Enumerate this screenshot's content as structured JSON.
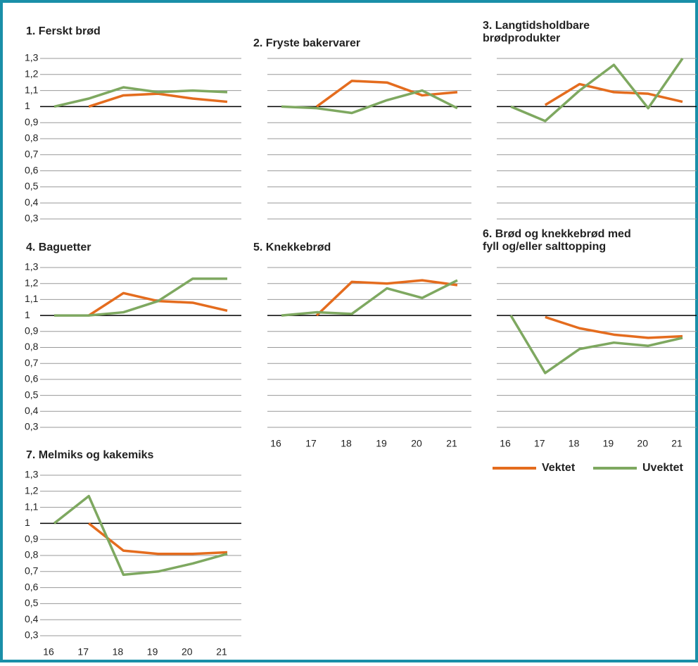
{
  "chart_data": [
    {
      "type": "line",
      "title": "1. Ferskt brød",
      "categories": [
        null,
        null,
        null,
        null,
        null,
        null
      ],
      "series": [
        {
          "color": "#e46c1e",
          "values": [
            null,
            1.0,
            1.07,
            1.08,
            1.05,
            1.03
          ]
        },
        {
          "color": "#7ea860",
          "values": [
            1.0,
            1.05,
            1.12,
            1.09,
            1.1,
            1.09
          ]
        }
      ],
      "ylim": [
        0.3,
        1.3
      ],
      "yticks": [
        {
          "value": 1.3,
          "label": "1,3"
        },
        {
          "value": 1.2,
          "label": "1,2"
        },
        {
          "value": 1.1,
          "label": "1,1"
        },
        1,
        {
          "value": 0.9,
          "label": "0,9"
        },
        {
          "value": 0.8,
          "label": "0,8"
        },
        {
          "value": 0.7,
          "label": "0,7"
        },
        {
          "value": 0.6,
          "label": "0,6"
        },
        {
          "value": 0.5,
          "label": "0,5"
        },
        {
          "value": 0.4,
          "label": "0,4"
        },
        {
          "value": 0.3,
          "label": "0,3"
        }
      ],
      "grid": true,
      "baseline": 1
    },
    {
      "type": "line",
      "title": "2. Fryste bakervarer",
      "categories": [
        null,
        null,
        null,
        null,
        null,
        null
      ],
      "series": [
        {
          "color": "#e46c1e",
          "values": [
            null,
            1.0,
            1.16,
            1.15,
            1.07,
            1.09
          ]
        },
        {
          "color": "#7ea860",
          "values": [
            1.0,
            0.99,
            0.96,
            1.04,
            1.1,
            0.99
          ]
        }
      ],
      "ylim": [
        0.3,
        1.3
      ],
      "yticks": [
        1.3,
        1.2,
        1.1,
        1,
        0.9,
        0.8,
        0.7,
        0.6,
        0.5,
        0.4,
        0.3
      ],
      "grid": true,
      "baseline": 1
    },
    {
      "type": "line",
      "title": [
        "3. Langtidsholdbare",
        "brødprodukter"
      ],
      "categories": [
        null,
        null,
        null,
        null,
        null,
        null
      ],
      "series": [
        {
          "color": "#e46c1e",
          "values": [
            null,
            1.01,
            1.14,
            1.09,
            1.08,
            1.03
          ]
        },
        {
          "color": "#7ea860",
          "values": [
            1.0,
            0.91,
            1.1,
            1.26,
            0.99,
            1.3
          ]
        }
      ],
      "ylim": [
        0.3,
        1.3
      ],
      "yticks": [
        1.3,
        1.2,
        1.1,
        1,
        0.9,
        0.8,
        0.7,
        0.6,
        0.5,
        0.4,
        0.3
      ],
      "grid": true,
      "baseline": 1
    },
    {
      "type": "line",
      "title": "4. Baguetter",
      "categories": [
        null,
        null,
        null,
        null,
        null,
        null
      ],
      "series": [
        {
          "color": "#e46c1e",
          "values": [
            null,
            1.0,
            1.14,
            1.09,
            1.08,
            1.03
          ]
        },
        {
          "color": "#7ea860",
          "values": [
            1.0,
            1.0,
            1.02,
            1.09,
            1.23,
            1.23
          ]
        }
      ],
      "ylim": [
        0.3,
        1.3
      ],
      "yticks": [
        {
          "value": 1.3,
          "label": "1,3"
        },
        {
          "value": 1.2,
          "label": "1,2"
        },
        {
          "value": 1.1,
          "label": "1,1"
        },
        1,
        {
          "value": 0.9,
          "label": "0,9"
        },
        {
          "value": 0.8,
          "label": "0,8"
        },
        {
          "value": 0.7,
          "label": "0,7"
        },
        {
          "value": 0.6,
          "label": "0,6"
        },
        {
          "value": 0.5,
          "label": "0,5"
        },
        {
          "value": 0.4,
          "label": "0,4"
        },
        {
          "value": 0.3,
          "label": "0,3"
        }
      ],
      "grid": true,
      "baseline": 1
    },
    {
      "type": "line",
      "title": "5. Knekkebrød",
      "categories": [
        "16",
        "17",
        "18",
        "19",
        "20",
        "21"
      ],
      "series": [
        {
          "color": "#e46c1e",
          "values": [
            null,
            1.0,
            1.21,
            1.2,
            1.22,
            1.19
          ]
        },
        {
          "color": "#7ea860",
          "values": [
            1.0,
            1.02,
            1.01,
            1.17,
            1.11,
            1.22
          ]
        }
      ],
      "ylim": [
        0.3,
        1.3
      ],
      "yticks": [
        1.3,
        1.2,
        1.1,
        1,
        0.9,
        0.8,
        0.7,
        0.6,
        0.5,
        0.4,
        0.3
      ],
      "grid": true,
      "baseline": 1
    },
    {
      "type": "line",
      "title": [
        "6. Brød og knekkebrød med",
        "fyll og/eller salttopping"
      ],
      "categories": [
        "16",
        "17",
        "18",
        "19",
        "20",
        "21"
      ],
      "series": [
        {
          "name": "Vektet",
          "color": "#e46c1e",
          "values": [
            null,
            0.99,
            0.92,
            0.88,
            0.86,
            0.87
          ]
        },
        {
          "name": "Uvektet",
          "color": "#7ea860",
          "values": [
            1.0,
            0.64,
            0.79,
            0.83,
            0.81,
            0.86
          ]
        }
      ],
      "ylim": [
        0.3,
        1.3
      ],
      "yticks": [
        1.3,
        1.2,
        1.1,
        1,
        0.9,
        0.8,
        0.7,
        0.6,
        0.5,
        0.4,
        0.3
      ],
      "grid": true,
      "baseline": 1,
      "legend": "bottom"
    },
    {
      "type": "line",
      "title": "7. Melmiks og kakemiks",
      "categories": [
        "16",
        "17",
        "18",
        "19",
        "20",
        "21"
      ],
      "series": [
        {
          "color": "#e46c1e",
          "values": [
            null,
            1.0,
            0.83,
            0.81,
            0.81,
            0.82
          ]
        },
        {
          "color": "#7ea860",
          "values": [
            1.0,
            1.17,
            0.68,
            0.7,
            0.75,
            0.81
          ]
        }
      ],
      "ylim": [
        0.3,
        1.3
      ],
      "yticks": [
        {
          "value": 1.3,
          "label": "1,3"
        },
        {
          "value": 1.2,
          "label": "1,2"
        },
        {
          "value": 1.1,
          "label": "1,1"
        },
        1,
        {
          "value": 0.9,
          "label": "0,9"
        },
        {
          "value": 0.8,
          "label": "0,8"
        },
        {
          "value": 0.7,
          "label": "0,7"
        },
        {
          "value": 0.6,
          "label": "0,6"
        },
        {
          "value": 0.5,
          "label": "0,5"
        },
        {
          "value": 0.4,
          "label": "0,4"
        },
        {
          "value": 0.3,
          "label": "0,3"
        }
      ],
      "grid": true,
      "baseline": 1
    }
  ]
}
